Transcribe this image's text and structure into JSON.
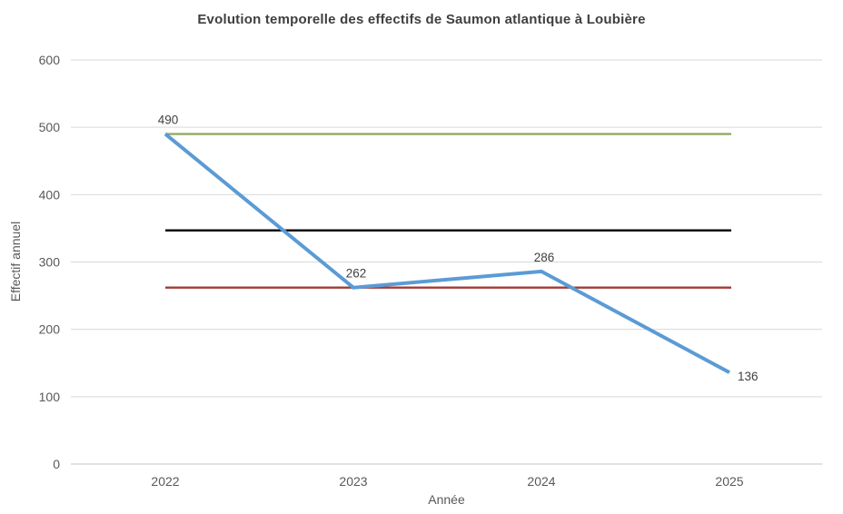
{
  "chart_data": {
    "type": "line",
    "title": "Evolution temporelle des effectifs de Saumon atlantique à Loubière",
    "xlabel": "Année",
    "ylabel": "Effectif annuel",
    "categories": [
      "2022",
      "2023",
      "2024",
      "2025"
    ],
    "series": [
      {
        "name": "Effectif annuel",
        "values": [
          490,
          262,
          286,
          136
        ],
        "color": "#5B9BD5",
        "line_width": 4,
        "data_labels": [
          "490",
          "262",
          "286",
          "136"
        ],
        "label_positions": [
          "above",
          "above",
          "above",
          "right"
        ]
      }
    ],
    "reference_lines": [
      {
        "value": 490,
        "color": "#93A964",
        "line_width": 2.4
      },
      {
        "value": 347,
        "color": "#000000",
        "line_width": 2.4
      },
      {
        "value": 262,
        "color": "#A33A34",
        "line_width": 2.4
      }
    ],
    "ylim": [
      0,
      600
    ],
    "yticks": [
      0,
      100,
      200,
      300,
      400,
      500,
      600
    ],
    "grid": true,
    "grid_color": "#D9D9D9",
    "baseline_color": "#C3C3C3",
    "legend_position": "none"
  }
}
